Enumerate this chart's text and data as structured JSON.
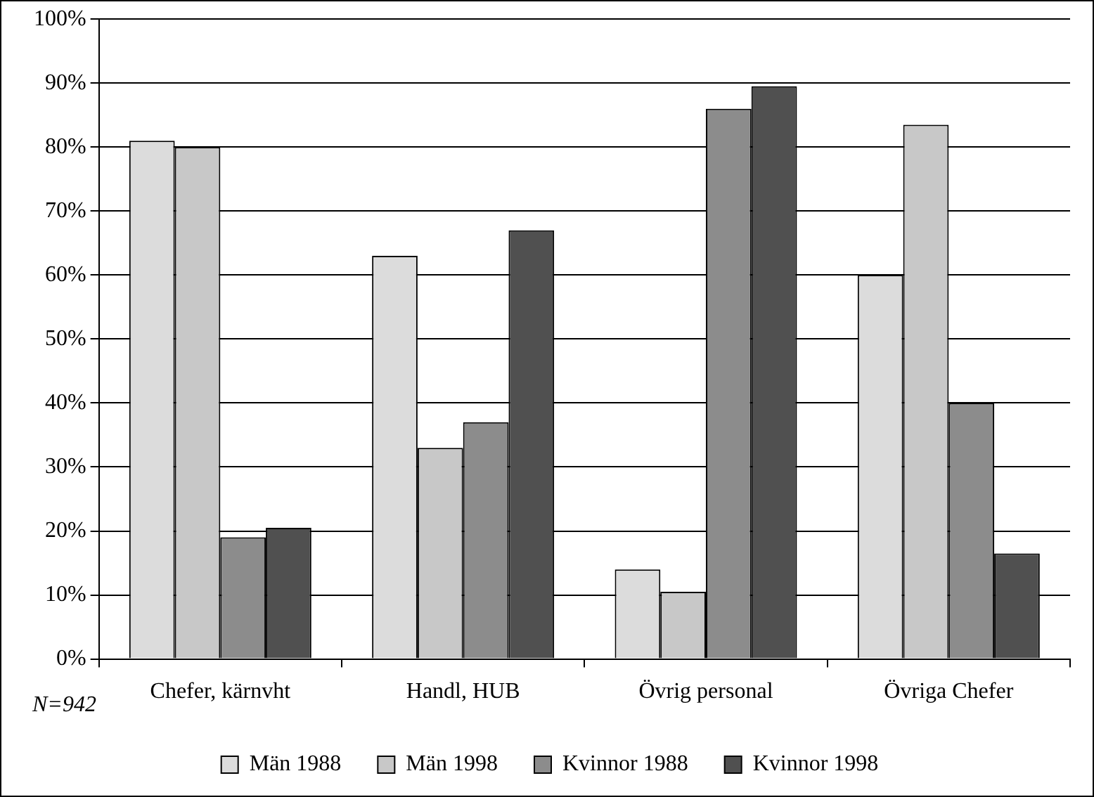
{
  "chart_data": {
    "type": "bar",
    "categories": [
      "Chefer, kärnvht",
      "Handl, HUB",
      "Övrig personal",
      "Övriga Chefer"
    ],
    "series": [
      {
        "name": "Män 1988",
        "color": "#dcdcdc",
        "values": [
          81,
          63,
          14,
          60
        ]
      },
      {
        "name": "Män 1998",
        "color": "#c8c8c8",
        "values": [
          80,
          33,
          10.5,
          83.5
        ]
      },
      {
        "name": "Kvinnor 1988",
        "color": "#8c8c8c",
        "values": [
          19,
          37,
          86,
          40
        ]
      },
      {
        "name": "Kvinnor 1998",
        "color": "#505050",
        "values": [
          20.5,
          67,
          89.5,
          16.5
        ]
      }
    ],
    "ylim": [
      0,
      100
    ],
    "yticks": [
      {
        "value": 0,
        "label": "0%"
      },
      {
        "value": 10,
        "label": "10%"
      },
      {
        "value": 20,
        "label": "20%"
      },
      {
        "value": 30,
        "label": "30%"
      },
      {
        "value": 40,
        "label": "40%"
      },
      {
        "value": 50,
        "label": "50%"
      },
      {
        "value": 60,
        "label": "60%"
      },
      {
        "value": 70,
        "label": "70%"
      },
      {
        "value": 80,
        "label": "80%"
      },
      {
        "value": 90,
        "label": "90%"
      },
      {
        "value": 100,
        "label": "100%"
      }
    ],
    "grid": "y",
    "legend": "bottom",
    "annotations": [
      "N=942"
    ]
  }
}
